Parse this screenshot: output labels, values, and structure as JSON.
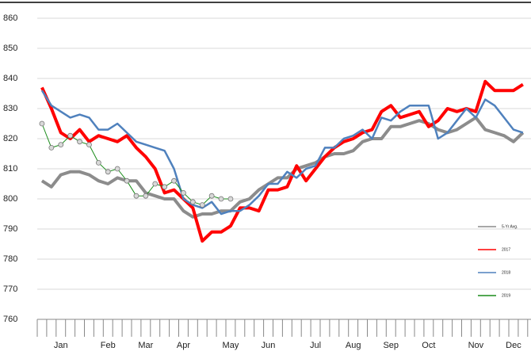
{
  "chart_data": {
    "type": "line",
    "categories": [
      null,
      null,
      "Jan",
      null,
      null,
      null,
      null,
      "Feb",
      null,
      null,
      null,
      "Mar",
      null,
      null,
      null,
      "Apr",
      null,
      null,
      null,
      null,
      "May",
      null,
      null,
      null,
      "Jun",
      null,
      null,
      null,
      null,
      "Jul",
      null,
      null,
      null,
      "Aug",
      null,
      null,
      null,
      "Sep",
      null,
      null,
      null,
      "Oct",
      null,
      null,
      null,
      null,
      "Nov",
      null,
      null,
      null,
      "Dec",
      null
    ],
    "series": [
      {
        "name": "5-Yr Avg.",
        "color": "#8c8c8c",
        "values": [
          806,
          804,
          808,
          809,
          809,
          808,
          806,
          805,
          807,
          806,
          806,
          802,
          801,
          800,
          800,
          796,
          794,
          795,
          795,
          796,
          796,
          799,
          800,
          803,
          805,
          807,
          807,
          810,
          811,
          812,
          814,
          815,
          815,
          816,
          819,
          820,
          820,
          824,
          824,
          825,
          826,
          825,
          823,
          822,
          823,
          825,
          827,
          823,
          822,
          821,
          819,
          822
        ]
      },
      {
        "name": "2017",
        "color": "#ff0000",
        "values": [
          837,
          830,
          822,
          820,
          823,
          819,
          821,
          820,
          819,
          821,
          817,
          814,
          810,
          802,
          803,
          800,
          797,
          786,
          789,
          789,
          791,
          797,
          797,
          796,
          803,
          803,
          804,
          811,
          806,
          810,
          814,
          817,
          819,
          820,
          822,
          823,
          829,
          831,
          827,
          828,
          829,
          824,
          826,
          830,
          829,
          830,
          829,
          839,
          836,
          836,
          836,
          838
        ]
      },
      {
        "name": "2018",
        "color": "#4f81bd",
        "values": [
          836,
          831,
          829,
          827,
          828,
          827,
          823,
          823,
          825,
          822,
          819,
          818,
          817,
          816,
          810,
          800,
          798,
          797,
          799,
          795,
          796,
          796,
          798,
          801,
          805,
          805,
          809,
          807,
          810,
          811,
          817,
          817,
          820,
          821,
          823,
          820,
          827,
          826,
          829,
          831,
          831,
          831,
          820,
          822,
          826,
          830,
          827,
          833,
          831,
          827,
          823,
          822
        ]
      },
      {
        "name": "2019",
        "color": "#1a8c1a",
        "values": [
          825,
          817,
          818,
          821,
          819,
          818,
          812,
          809,
          810,
          806,
          801,
          801,
          805,
          804,
          806,
          802,
          799,
          798,
          801,
          800,
          800,
          null,
          null,
          null,
          null,
          null,
          null,
          null,
          null,
          null,
          null,
          null,
          null,
          null,
          null,
          null,
          null,
          null,
          null,
          null,
          null,
          null,
          null,
          null,
          null,
          null,
          null,
          null,
          null,
          null,
          null,
          null
        ]
      }
    ],
    "ylim": [
      760,
      860
    ],
    "yticks": [
      760,
      770,
      780,
      790,
      800,
      810,
      820,
      830,
      840,
      850,
      860
    ],
    "grid": true,
    "legend": "right"
  }
}
